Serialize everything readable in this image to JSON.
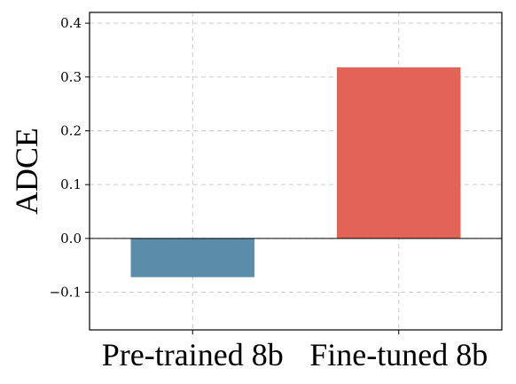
{
  "chart_data": {
    "type": "bar",
    "title": "",
    "xlabel": "",
    "ylabel": "ADCE",
    "categories": [
      "Pre-trained 8b",
      "Fine-tuned 8b"
    ],
    "values": [
      -0.072,
      0.318
    ],
    "colors": [
      "#5b8caa",
      "#e26456"
    ],
    "ylim": [
      -0.17,
      0.42
    ],
    "yticks": [
      -0.1,
      0.0,
      0.1,
      0.2,
      0.3,
      0.4
    ],
    "ytick_labels": [
      "−0.1",
      "0.0",
      "0.1",
      "0.2",
      "0.3",
      "0.4"
    ],
    "grid": true,
    "zero_line": true
  }
}
